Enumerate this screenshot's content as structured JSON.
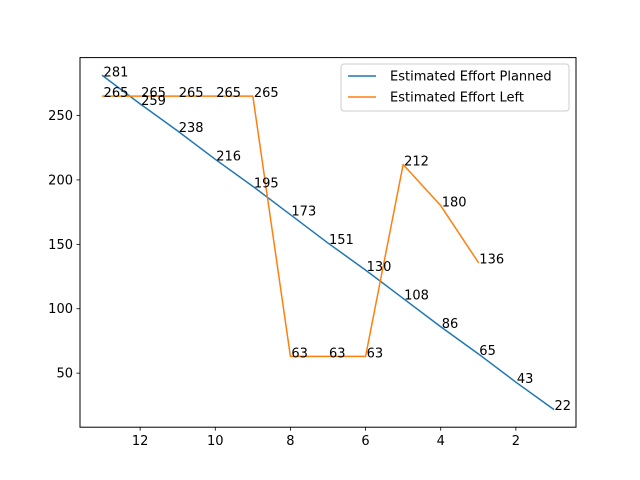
{
  "chart_data": {
    "type": "line",
    "title": "",
    "xlabel": "",
    "ylabel": "",
    "x_inverted": true,
    "xlim": [
      13.6,
      0.4
    ],
    "ylim": [
      8.05,
      294.95
    ],
    "xticks": [
      12,
      10,
      8,
      6,
      4,
      2
    ],
    "yticks": [
      50,
      100,
      150,
      200,
      250
    ],
    "grid": false,
    "legend_position": "upper right",
    "series": [
      {
        "name": "Estimated Effort Planned",
        "color": "#1f77b4",
        "x": [
          13,
          12,
          11,
          10,
          9,
          8,
          7,
          6,
          5,
          4,
          3,
          2,
          1
        ],
        "y": [
          281,
          259,
          238,
          216,
          195,
          173,
          151,
          130,
          108,
          86,
          65,
          43,
          22
        ],
        "labels": [
          "281",
          "259",
          "238",
          "216",
          "195",
          "173",
          "151",
          "130",
          "108",
          "86",
          "65",
          "43",
          "22"
        ]
      },
      {
        "name": "Estimated Effort Left",
        "color": "#ff7f0e",
        "x": [
          13,
          12,
          11,
          10,
          9,
          8,
          7,
          6,
          5,
          4,
          3
        ],
        "y": [
          265,
          265,
          265,
          265,
          265,
          63,
          63,
          63,
          212,
          180,
          136
        ],
        "labels": [
          "265",
          "265",
          "265",
          "265",
          "265",
          "63",
          "63",
          "63",
          "212",
          "180",
          "136"
        ]
      }
    ]
  }
}
